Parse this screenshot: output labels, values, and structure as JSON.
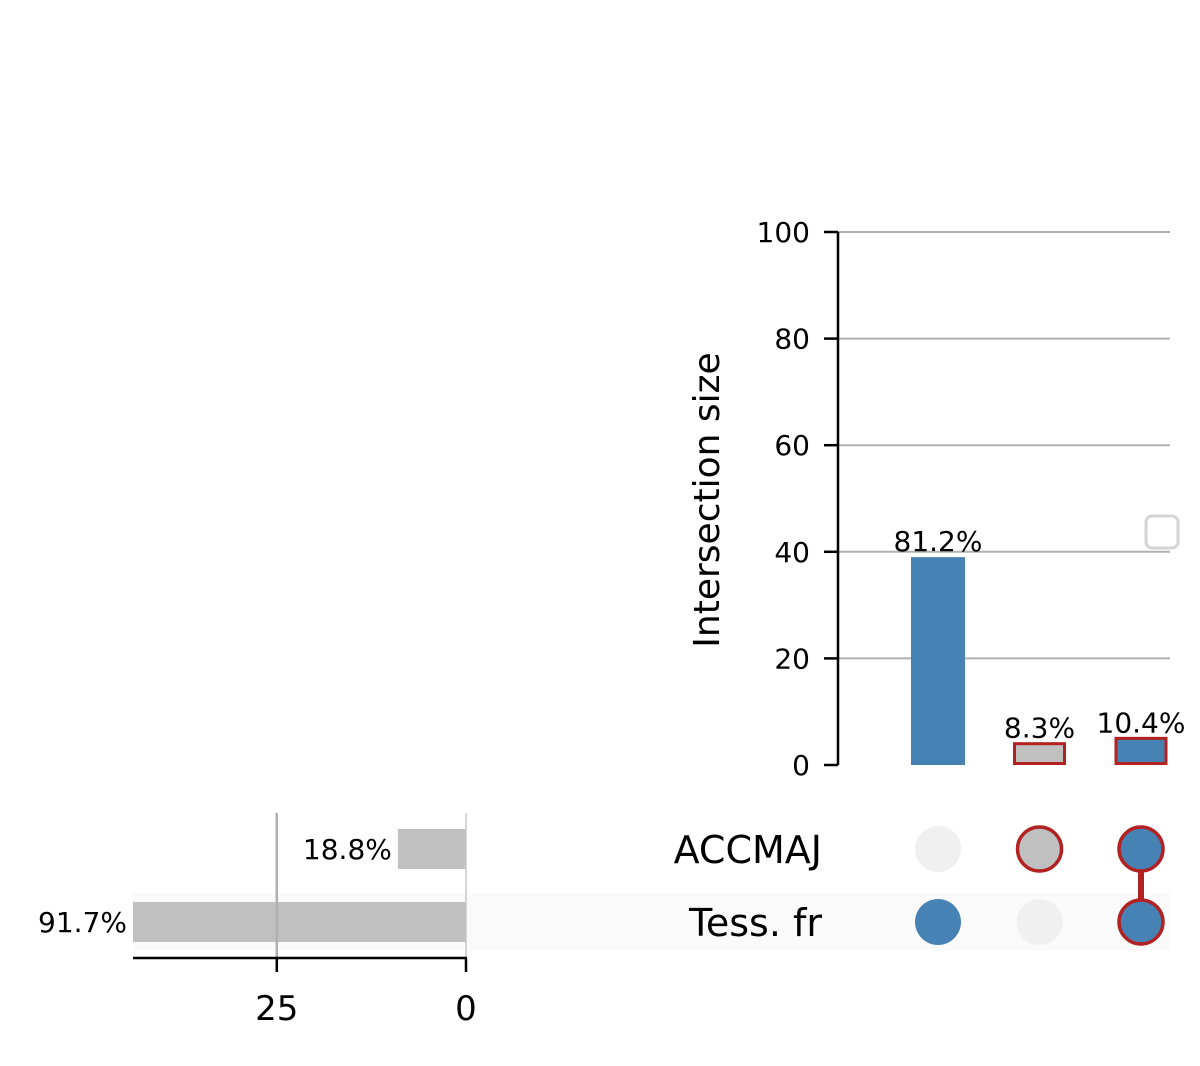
{
  "chart_data": {
    "type": "upset",
    "title": "",
    "ylabel": "Intersection size",
    "ylim": [
      0,
      100
    ],
    "yticks": [
      0,
      20,
      40,
      60,
      80,
      100
    ],
    "grid": true,
    "sets": [
      "ACCMAJ",
      "Tess. fr"
    ],
    "intersections": [
      {
        "members": [
          "Tess. fr"
        ],
        "value": 39,
        "label": "81.2%",
        "highlight": false
      },
      {
        "members": [
          "ACCMAJ"
        ],
        "value": 4,
        "label": "8.3%",
        "highlight": true
      },
      {
        "members": [
          "ACCMAJ",
          "Tess. fr"
        ],
        "value": 5,
        "label": "10.4%",
        "highlight": true
      }
    ],
    "set_sizes": {
      "xlim": [
        0,
        44
      ],
      "xticks": [
        0,
        25
      ],
      "values": [
        {
          "set": "ACCMAJ",
          "value": 9,
          "label": "18.8%"
        },
        {
          "set": "Tess. fr",
          "value": 44,
          "label": "91.7%"
        }
      ]
    },
    "legend": "right",
    "colors": {
      "bar": "#4682b4",
      "bar_muted": "#c0c0c0",
      "highlight_edge": "#b22222",
      "dot_inactive": "#f0f0f0",
      "set_size_bar": "#c0c0c0",
      "grid": "#b0b0b0",
      "row_shade": "#fafafa"
    }
  }
}
